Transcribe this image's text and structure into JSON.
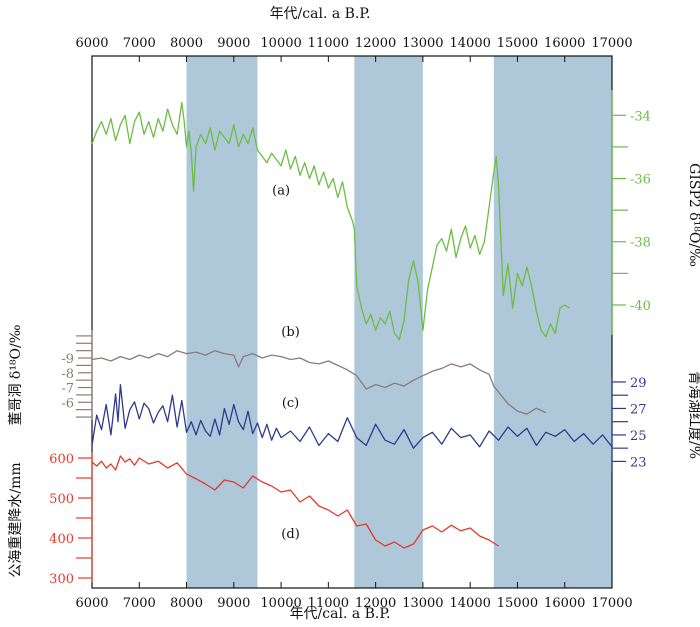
{
  "colors": {
    "background": "#ffffff",
    "frame": "#111111",
    "shade": "#aec8d9",
    "green": "#6cbd45",
    "gray": "#8c7b78",
    "blue": "#2f3a8f",
    "red": "#e23a2a"
  },
  "chart_data": {
    "type": "line",
    "x_axis": {
      "label": "年代/cal. a B.P.",
      "range": [
        6000,
        17000
      ],
      "ticks": [
        "6000",
        "7000",
        "8000",
        "9000",
        "10000",
        "11000",
        "12000",
        "13000",
        "14000",
        "15000",
        "16000",
        "17000"
      ],
      "tick_values": [
        6000,
        7000,
        8000,
        9000,
        10000,
        11000,
        12000,
        13000,
        14000,
        15000,
        16000,
        17000
      ],
      "positions": [
        "top",
        "bottom"
      ]
    },
    "shaded_intervals": [
      [
        8000,
        9500
      ],
      [
        11550,
        13000
      ],
      [
        14500,
        17000
      ]
    ],
    "panels": [
      {
        "id": "a",
        "label": "(a)",
        "label_x": 10000,
        "label_y": -36.5,
        "name": "GISP2 δ18O/‰",
        "axis_side": "right",
        "axis_label": "GISP2 δ¹⁸O/‰",
        "range": [
          -40.95,
          -33.2
        ],
        "y_top": -33.2,
        "y_bottom": -40.95,
        "ticks": [
          "-34",
          "-36",
          "-38",
          "-40"
        ],
        "tick_values": [
          -34,
          -36,
          -38,
          -40
        ],
        "series_name": "GISP2",
        "x": [
          6000,
          6100,
          6200,
          6300,
          6400,
          6500,
          6600,
          6700,
          6800,
          6900,
          7000,
          7100,
          7200,
          7300,
          7400,
          7500,
          7600,
          7700,
          7800,
          7900,
          7950,
          8000,
          8050,
          8100,
          8150,
          8200,
          8300,
          8400,
          8500,
          8600,
          8700,
          8800,
          8900,
          9000,
          9100,
          9200,
          9300,
          9400,
          9500,
          9600,
          9700,
          9800,
          9900,
          10000,
          10100,
          10200,
          10300,
          10400,
          10500,
          10600,
          10700,
          10800,
          10900,
          11000,
          11100,
          11200,
          11300,
          11400,
          11500,
          11550,
          11600,
          11700,
          11800,
          11900,
          12000,
          12100,
          12200,
          12300,
          12400,
          12500,
          12600,
          12700,
          12800,
          12900,
          13000,
          13100,
          13200,
          13300,
          13400,
          13500,
          13600,
          13700,
          13800,
          13900,
          14000,
          14100,
          14200,
          14300,
          14400,
          14500,
          14550,
          14600,
          14700,
          14800,
          14900,
          15000,
          15100,
          15200,
          15300,
          15400,
          15500,
          15600,
          15700,
          15800,
          15900,
          16000,
          16100
        ],
        "y": [
          -34.9,
          -34.5,
          -34.2,
          -34.6,
          -34.1,
          -34.8,
          -34.3,
          -34.0,
          -34.9,
          -34.2,
          -33.9,
          -34.6,
          -34.2,
          -34.7,
          -34.1,
          -34.5,
          -33.8,
          -34.3,
          -34.6,
          -33.6,
          -34.2,
          -35.0,
          -34.5,
          -35.2,
          -36.4,
          -35.0,
          -34.6,
          -34.9,
          -34.4,
          -35.1,
          -34.5,
          -34.7,
          -34.9,
          -34.3,
          -35.0,
          -34.6,
          -34.9,
          -34.4,
          -35.1,
          -35.3,
          -35.5,
          -35.2,
          -35.4,
          -35.6,
          -35.1,
          -35.7,
          -35.3,
          -35.9,
          -35.5,
          -36.0,
          -35.6,
          -36.2,
          -35.8,
          -36.3,
          -36.0,
          -36.6,
          -36.1,
          -36.9,
          -37.3,
          -37.6,
          -39.4,
          -40.1,
          -40.6,
          -40.3,
          -40.8,
          -40.4,
          -40.6,
          -40.2,
          -40.9,
          -41.1,
          -40.5,
          -39.2,
          -38.6,
          -39.3,
          -40.8,
          -39.5,
          -38.8,
          -38.1,
          -37.9,
          -38.3,
          -37.6,
          -38.5,
          -37.9,
          -37.5,
          -38.2,
          -37.8,
          -38.4,
          -38.0,
          -36.9,
          -35.8,
          -35.3,
          -36.2,
          -39.7,
          -38.7,
          -40.1,
          -39.0,
          -39.4,
          -38.8,
          -39.4,
          -40.2,
          -40.8,
          -41.0,
          -40.6,
          -40.9,
          -40.1,
          -40.0,
          -40.1
        ]
      },
      {
        "id": "b",
        "label": "(b)",
        "label_x": 10200,
        "label_y": -10.5,
        "name": "董哥洞 δ18O/‰",
        "axis_side": "left",
        "axis_label": "董哥洞 δ¹⁸O/‰",
        "range": [
          -10.9,
          -4.8
        ],
        "y_top": -10.9,
        "y_bottom": -4.8,
        "ticks": [
          "-9",
          "-8",
          "-7",
          "-6"
        ],
        "tick_values": [
          -9,
          -8,
          -7,
          -6
        ],
        "series_name": "Dongge",
        "x": [
          6000,
          6200,
          6400,
          6600,
          6800,
          7000,
          7200,
          7400,
          7600,
          7800,
          8000,
          8200,
          8400,
          8600,
          8800,
          9000,
          9100,
          9200,
          9400,
          9600,
          9800,
          10000,
          10200,
          10400,
          10600,
          10800,
          11000,
          11200,
          11400,
          11600,
          11800,
          12000,
          12200,
          12400,
          12600,
          12800,
          13000,
          13200,
          13400,
          13600,
          13800,
          14000,
          14200,
          14400,
          14500,
          14600,
          14800,
          15000,
          15200,
          15400,
          15600
        ],
        "y": [
          -8.9,
          -9.0,
          -8.8,
          -9.1,
          -8.9,
          -9.2,
          -9.0,
          -9.3,
          -9.1,
          -9.5,
          -9.3,
          -9.4,
          -9.2,
          -9.5,
          -9.3,
          -9.2,
          -8.4,
          -9.1,
          -9.3,
          -9.0,
          -9.2,
          -9.1,
          -8.9,
          -9.0,
          -8.7,
          -8.6,
          -8.8,
          -8.5,
          -8.2,
          -7.8,
          -6.9,
          -7.2,
          -7.0,
          -7.3,
          -7.1,
          -7.5,
          -7.8,
          -8.1,
          -8.3,
          -8.6,
          -8.4,
          -8.6,
          -8.2,
          -7.9,
          -7.1,
          -6.7,
          -5.9,
          -5.4,
          -5.2,
          -5.6,
          -5.3
        ]
      },
      {
        "id": "c",
        "label": "(c)",
        "label_x": 10200,
        "label_y": 27.1,
        "name": "青海湖红度/%",
        "axis_side": "right",
        "axis_label": "青海湖红度/%",
        "range": [
          22.2,
          29.3
        ],
        "y_top": 29.3,
        "y_bottom": 22.2,
        "ticks": [
          "29",
          "27",
          "25",
          "23"
        ],
        "tick_values": [
          29,
          27,
          25,
          23
        ],
        "series_name": "Qinghai",
        "x": [
          6000,
          6100,
          6200,
          6300,
          6400,
          6500,
          6550,
          6600,
          6700,
          6800,
          6900,
          7000,
          7100,
          7200,
          7300,
          7400,
          7500,
          7600,
          7700,
          7800,
          7900,
          8000,
          8100,
          8200,
          8300,
          8400,
          8500,
          8600,
          8700,
          8800,
          8900,
          9000,
          9100,
          9200,
          9300,
          9400,
          9500,
          9600,
          9700,
          9800,
          9900,
          10000,
          10200,
          10400,
          10600,
          10800,
          11000,
          11200,
          11400,
          11600,
          11800,
          12000,
          12200,
          12400,
          12600,
          12800,
          13000,
          13200,
          13400,
          13600,
          13800,
          14000,
          14200,
          14400,
          14600,
          14800,
          15000,
          15200,
          15400,
          15600,
          15800,
          16000,
          16200,
          16400,
          16600,
          16800,
          17000
        ],
        "y": [
          24.2,
          26.5,
          25.4,
          27.3,
          25.0,
          28.1,
          26.0,
          28.8,
          25.5,
          26.9,
          27.5,
          26.2,
          27.4,
          27.0,
          25.9,
          26.7,
          27.2,
          26.0,
          28.0,
          25.6,
          27.6,
          25.2,
          26.0,
          25.0,
          26.1,
          25.3,
          24.9,
          26.2,
          25.0,
          27.0,
          25.8,
          27.3,
          26.0,
          25.4,
          26.8,
          25.1,
          25.9,
          24.8,
          25.8,
          24.6,
          25.5,
          24.8,
          25.3,
          24.5,
          25.6,
          24.2,
          25.1,
          24.5,
          26.3,
          24.8,
          24.2,
          25.8,
          24.6,
          24.3,
          25.4,
          24.0,
          24.8,
          25.2,
          24.3,
          25.5,
          24.8,
          25.0,
          24.1,
          25.3,
          24.6,
          25.6,
          24.9,
          25.5,
          24.2,
          25.2,
          24.9,
          25.4,
          24.5,
          25.1,
          24.3,
          25.0,
          24.1
        ]
      },
      {
        "id": "d",
        "label": "(d)",
        "label_x": 10200,
        "label_y": 400,
        "name": "公海重建降水/mm",
        "axis_side": "left",
        "axis_label": "公海重建降水/mm",
        "range": [
          290,
          615
        ],
        "y_top": 615,
        "y_bottom": 290,
        "ticks": [
          "600",
          "500",
          "400",
          "300"
        ],
        "tick_values": [
          600,
          500,
          400,
          300
        ],
        "series_name": "Gonghai",
        "x": [
          6000,
          6100,
          6200,
          6300,
          6400,
          6500,
          6600,
          6700,
          6800,
          6900,
          7000,
          7200,
          7400,
          7600,
          7800,
          8000,
          8200,
          8400,
          8600,
          8800,
          9000,
          9200,
          9400,
          9600,
          9800,
          10000,
          10200,
          10400,
          10600,
          10800,
          11000,
          11200,
          11400,
          11600,
          11800,
          12000,
          12200,
          12400,
          12600,
          12800,
          13000,
          13200,
          13400,
          13600,
          13800,
          14000,
          14200,
          14400,
          14600
        ],
        "y": [
          590,
          580,
          592,
          575,
          585,
          570,
          605,
          590,
          598,
          582,
          600,
          585,
          592,
          575,
          588,
          560,
          548,
          535,
          520,
          545,
          540,
          525,
          555,
          540,
          530,
          515,
          520,
          490,
          505,
          480,
          470,
          455,
          470,
          430,
          435,
          395,
          380,
          390,
          375,
          385,
          420,
          430,
          415,
          432,
          418,
          425,
          405,
          395,
          380
        ]
      }
    ]
  }
}
